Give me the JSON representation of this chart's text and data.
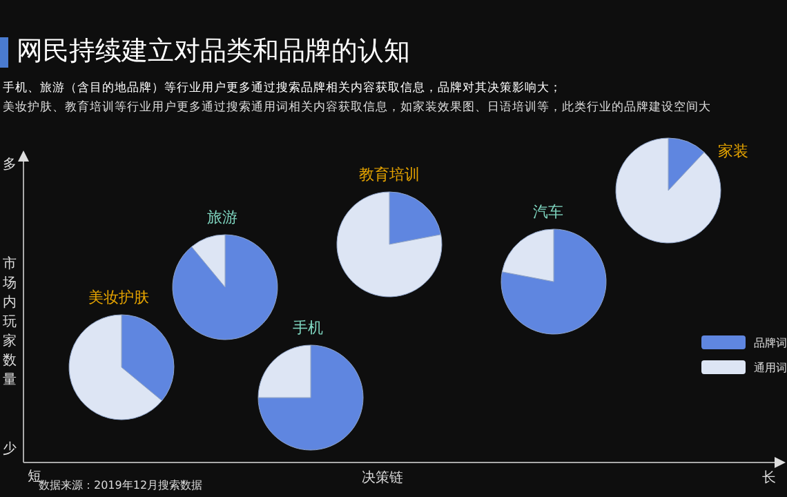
{
  "chart_data": {
    "type": "pie",
    "title": "网民持续建立对品类和品牌的认知",
    "subtitle": "手机、旅游（含目的地品牌）等行业用户更多通过搜索品牌相关内容获取信息，品牌对其决策影响大；",
    "xlabel": "决策链",
    "ylabel": "市场内玩家数量",
    "annotations": [
      "美妆护肤、教育培训等行业用户更多通过搜索通用词相关内容获取信息，如家装效果图、日语培训等，此类行业的品牌建设空间大",
      "多",
      "少",
      "短",
      "长",
      "数据来源：2019年12月搜索数据"
    ],
    "categories": [
      "品牌词",
      "通用词"
    ],
    "colors": [
      "#5f86e0",
      "#dde5f4"
    ],
    "legend": "right",
    "series": [
      {
        "name": "美妆护肤",
        "values": [
          36,
          64
        ]
      },
      {
        "name": "旅游",
        "values": [
          89,
          11
        ]
      },
      {
        "name": "手机",
        "values": [
          75,
          25
        ]
      },
      {
        "name": "教育培训",
        "values": [
          22,
          78
        ]
      },
      {
        "name": "汽车",
        "values": [
          78,
          22
        ]
      },
      {
        "name": "家装",
        "values": [
          12,
          88
        ]
      }
    ]
  }
}
